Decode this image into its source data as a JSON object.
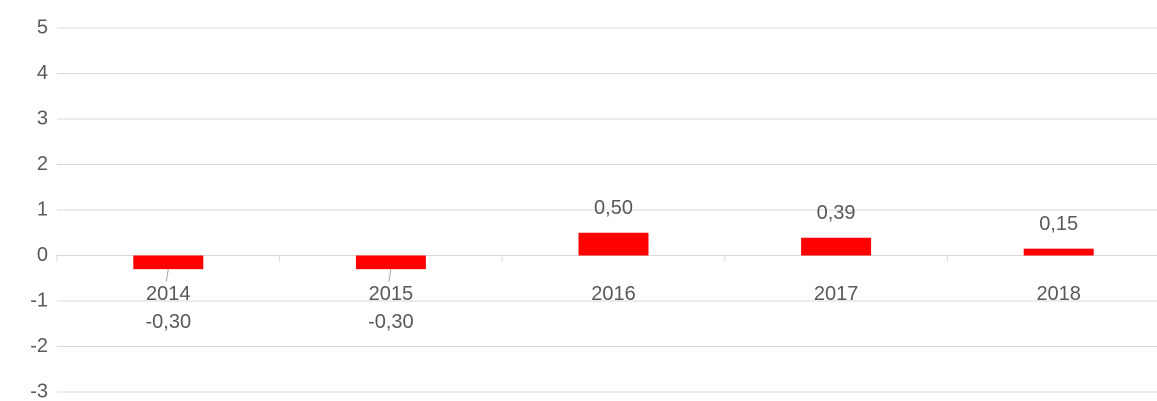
{
  "chart_data": {
    "type": "bar",
    "categories": [
      "2014",
      "2015",
      "2016",
      "2017",
      "2018"
    ],
    "values": [
      -0.3,
      -0.3,
      0.5,
      0.39,
      0.15
    ],
    "value_labels": [
      "-0,30",
      "-0,30",
      "0,50",
      "0,39",
      "0,15"
    ],
    "color": "#ff0000",
    "ylim": [
      -3,
      5
    ],
    "yticks": [
      -3,
      -2,
      -1,
      0,
      1,
      2,
      3,
      4,
      5
    ],
    "grid": true
  }
}
